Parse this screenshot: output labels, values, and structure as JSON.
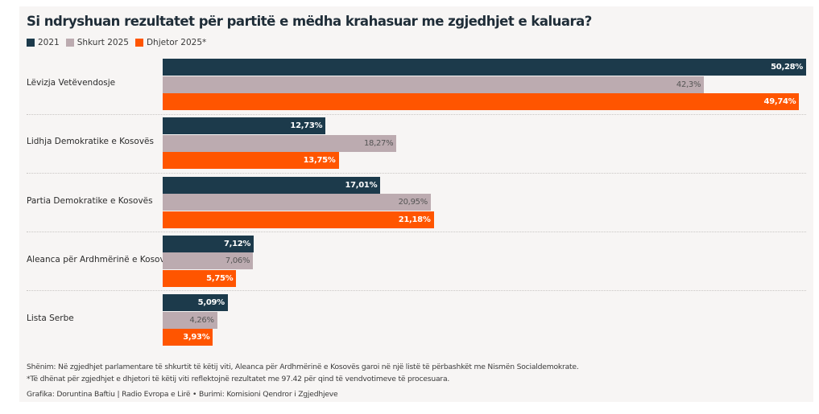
{
  "chart_data": {
    "type": "bar",
    "orientation": "horizontal",
    "title": "Si ndryshuan rezultatet për partitë e mëdha krahasuar me zgjedhjet e kaluara?",
    "categories": [
      "Lëvizja Vetëvendosje",
      "Lidhja Demokratike e Kosovës",
      "Partia Demokratike e Kosovës",
      "Aleanca për Ardhmërinë e Kosovës",
      "Lista Serbe"
    ],
    "series": [
      {
        "name": "2021",
        "color": "#1c3a4b",
        "label_color": "#ffffff",
        "values": [
          50.28,
          12.73,
          17.01,
          7.12,
          5.09
        ],
        "labels": [
          "50,28%",
          "12,73%",
          "17,01%",
          "7,12%",
          "5,09%"
        ]
      },
      {
        "name": "Shkurt 2025",
        "color": "#bcabb0",
        "label_color": "#555555",
        "values": [
          42.3,
          18.27,
          20.95,
          7.06,
          4.26
        ],
        "labels": [
          "42,3%",
          "18,27%",
          "20,95%",
          "7,06%",
          "4,26%"
        ]
      },
      {
        "name": "Dhjetor 2025*",
        "color": "#ff5500",
        "label_color": "#ffffff",
        "values": [
          49.74,
          13.75,
          21.18,
          5.75,
          3.93
        ],
        "labels": [
          "49,74%",
          "13,75%",
          "21,18%",
          "5,75%",
          "3,93%"
        ]
      }
    ],
    "xlim": [
      0,
      50.28
    ],
    "unit": "%",
    "legend": "top-left",
    "grid": false
  },
  "notes": {
    "note1": "Shënim: Në zgjedhjet parlamentare të shkurtit të këtij viti, Aleanca për Ardhmërinë e Kosovës garoi në një listë të përbashkët me Nismën Socialdemokrate.",
    "note2": "*Të dhënat për zgjedhjet e dhjetori të këtij viti reflektojnë rezultatet me 97.42 për qind të vendvotimeve të procesuara.",
    "credit": "Grafika: Doruntina Baftiu | Radio Evropa e Lirë • Burimi: Komisioni Qendror i Zgjedhjeve"
  }
}
